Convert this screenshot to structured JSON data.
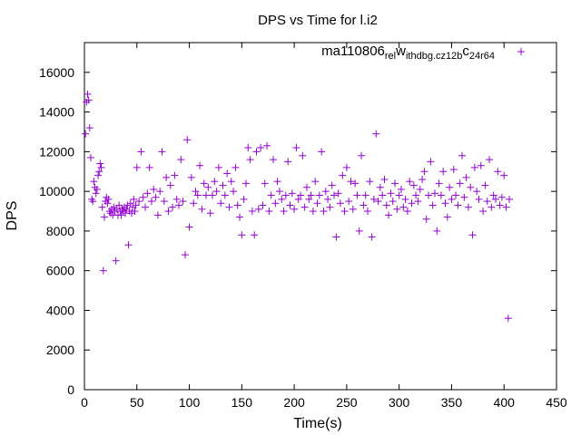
{
  "chart_data": {
    "type": "scatter",
    "title": "DPS vs Time for l.i2",
    "xlabel": "Time(s)",
    "ylabel": "DPS",
    "xlim": [
      0,
      450
    ],
    "ylim": [
      0,
      17500
    ],
    "xticks": [
      0,
      50,
      100,
      150,
      200,
      250,
      300,
      350,
      400,
      450
    ],
    "yticks": [
      0,
      2000,
      4000,
      6000,
      8000,
      10000,
      12000,
      14000,
      16000
    ],
    "grid": false,
    "legend_position": "top-right",
    "marker_color": "#9400D3",
    "series": [
      {
        "name": "ma110806_rel_withdbg.cz12b_c24r64",
        "legend_parts": [
          {
            "text": "ma110806",
            "sub": false
          },
          {
            "text": "rel",
            "sub": true
          },
          {
            "text": "w",
            "sub": false
          },
          {
            "text": "ithdbg.cz12b",
            "sub": true
          },
          {
            "text": "c",
            "sub": false
          },
          {
            "text": "24r64",
            "sub": true
          }
        ],
        "points": [
          [
            1,
            12900
          ],
          [
            2,
            14500
          ],
          [
            3,
            14900
          ],
          [
            4,
            14600
          ],
          [
            5,
            13200
          ],
          [
            6,
            11700
          ],
          [
            7,
            9600
          ],
          [
            8,
            9500
          ],
          [
            9,
            10500
          ],
          [
            10,
            10200
          ],
          [
            11,
            9900
          ],
          [
            12,
            10100
          ],
          [
            13,
            10800
          ],
          [
            14,
            11000
          ],
          [
            15,
            11400
          ],
          [
            16,
            11200
          ],
          [
            17,
            9200
          ],
          [
            18,
            6000
          ],
          [
            19,
            8700
          ],
          [
            20,
            9500
          ],
          [
            21,
            9700
          ],
          [
            22,
            9400
          ],
          [
            23,
            9600
          ],
          [
            24,
            9000
          ],
          [
            25,
            8900
          ],
          [
            26,
            9100
          ],
          [
            27,
            8800
          ],
          [
            28,
            9200
          ],
          [
            29,
            9000
          ],
          [
            30,
            6500
          ],
          [
            31,
            9100
          ],
          [
            32,
            8800
          ],
          [
            33,
            9300
          ],
          [
            34,
            9000
          ],
          [
            35,
            8800
          ],
          [
            36,
            9100
          ],
          [
            37,
            9000
          ],
          [
            38,
            9200
          ],
          [
            39,
            8900
          ],
          [
            40,
            9100
          ],
          [
            41,
            9300
          ],
          [
            42,
            7300
          ],
          [
            43,
            9000
          ],
          [
            44,
            9400
          ],
          [
            45,
            8900
          ],
          [
            46,
            9200
          ],
          [
            47,
            9600
          ],
          [
            48,
            9000
          ],
          [
            49,
            9300
          ],
          [
            50,
            11200
          ],
          [
            52,
            9500
          ],
          [
            54,
            12000
          ],
          [
            56,
            9700
          ],
          [
            58,
            9200
          ],
          [
            60,
            9900
          ],
          [
            62,
            11200
          ],
          [
            64,
            9500
          ],
          [
            66,
            10100
          ],
          [
            68,
            9700
          ],
          [
            70,
            8800
          ],
          [
            72,
            10000
          ],
          [
            74,
            12000
          ],
          [
            76,
            9500
          ],
          [
            78,
            10700
          ],
          [
            80,
            9000
          ],
          [
            82,
            10300
          ],
          [
            84,
            9200
          ],
          [
            86,
            10800
          ],
          [
            88,
            9600
          ],
          [
            90,
            9300
          ],
          [
            92,
            11600
          ],
          [
            94,
            9500
          ],
          [
            96,
            6800
          ],
          [
            98,
            12600
          ],
          [
            100,
            8200
          ],
          [
            102,
            10700
          ],
          [
            104,
            9400
          ],
          [
            106,
            10000
          ],
          [
            108,
            9800
          ],
          [
            110,
            11300
          ],
          [
            112,
            9100
          ],
          [
            114,
            10400
          ],
          [
            116,
            9800
          ],
          [
            118,
            10200
          ],
          [
            120,
            8900
          ],
          [
            122,
            9800
          ],
          [
            124,
            10500
          ],
          [
            126,
            10000
          ],
          [
            128,
            11200
          ],
          [
            130,
            9400
          ],
          [
            132,
            10300
          ],
          [
            134,
            9800
          ],
          [
            136,
            10900
          ],
          [
            138,
            9200
          ],
          [
            140,
            10500
          ],
          [
            142,
            10000
          ],
          [
            144,
            11200
          ],
          [
            146,
            9300
          ],
          [
            148,
            8700
          ],
          [
            150,
            7800
          ],
          [
            152,
            9600
          ],
          [
            154,
            10400
          ],
          [
            156,
            12200
          ],
          [
            158,
            11600
          ],
          [
            160,
            9000
          ],
          [
            162,
            7800
          ],
          [
            164,
            12000
          ],
          [
            166,
            9100
          ],
          [
            168,
            12200
          ],
          [
            170,
            9300
          ],
          [
            172,
            10400
          ],
          [
            174,
            12300
          ],
          [
            176,
            9000
          ],
          [
            178,
            9800
          ],
          [
            180,
            11600
          ],
          [
            182,
            9400
          ],
          [
            184,
            10500
          ],
          [
            186,
            10000
          ],
          [
            188,
            9600
          ],
          [
            190,
            9000
          ],
          [
            192,
            9800
          ],
          [
            194,
            11500
          ],
          [
            196,
            9300
          ],
          [
            198,
            9900
          ],
          [
            200,
            9100
          ],
          [
            202,
            12200
          ],
          [
            204,
            9600
          ],
          [
            206,
            9800
          ],
          [
            208,
            11800
          ],
          [
            210,
            9200
          ],
          [
            212,
            10200
          ],
          [
            214,
            9600
          ],
          [
            216,
            9800
          ],
          [
            218,
            9000
          ],
          [
            220,
            10500
          ],
          [
            222,
            9400
          ],
          [
            224,
            9800
          ],
          [
            226,
            12000
          ],
          [
            228,
            9000
          ],
          [
            230,
            10000
          ],
          [
            232,
            9600
          ],
          [
            234,
            9200
          ],
          [
            236,
            10300
          ],
          [
            238,
            9800
          ],
          [
            240,
            7700
          ],
          [
            242,
            9900
          ],
          [
            244,
            9400
          ],
          [
            246,
            10800
          ],
          [
            248,
            9000
          ],
          [
            250,
            11200
          ],
          [
            252,
            9500
          ],
          [
            254,
            10500
          ],
          [
            256,
            9100
          ],
          [
            258,
            10400
          ],
          [
            260,
            9800
          ],
          [
            262,
            8000
          ],
          [
            264,
            11800
          ],
          [
            266,
            9300
          ],
          [
            268,
            9800
          ],
          [
            270,
            9000
          ],
          [
            272,
            10500
          ],
          [
            274,
            7700
          ],
          [
            276,
            9600
          ],
          [
            278,
            12900
          ],
          [
            280,
            9500
          ],
          [
            282,
            10200
          ],
          [
            284,
            9800
          ],
          [
            286,
            10600
          ],
          [
            288,
            9300
          ],
          [
            290,
            8800
          ],
          [
            292,
            9900
          ],
          [
            294,
            9500
          ],
          [
            296,
            10400
          ],
          [
            298,
            9100
          ],
          [
            300,
            9800
          ],
          [
            302,
            10100
          ],
          [
            304,
            9200
          ],
          [
            306,
            9600
          ],
          [
            308,
            9000
          ],
          [
            310,
            10500
          ],
          [
            312,
            9400
          ],
          [
            314,
            10300
          ],
          [
            316,
            9800
          ],
          [
            318,
            9500
          ],
          [
            320,
            10100
          ],
          [
            322,
            10600
          ],
          [
            324,
            11000
          ],
          [
            326,
            8600
          ],
          [
            328,
            9800
          ],
          [
            330,
            11500
          ],
          [
            332,
            9300
          ],
          [
            334,
            9900
          ],
          [
            336,
            8000
          ],
          [
            338,
            10400
          ],
          [
            340,
            9800
          ],
          [
            342,
            11000
          ],
          [
            344,
            9400
          ],
          [
            346,
            8700
          ],
          [
            348,
            10200
          ],
          [
            350,
            9600
          ],
          [
            352,
            11100
          ],
          [
            354,
            9800
          ],
          [
            356,
            9300
          ],
          [
            358,
            10400
          ],
          [
            360,
            11800
          ],
          [
            362,
            9700
          ],
          [
            364,
            10700
          ],
          [
            366,
            9200
          ],
          [
            368,
            10200
          ],
          [
            370,
            7800
          ],
          [
            372,
            11200
          ],
          [
            374,
            10000
          ],
          [
            376,
            9600
          ],
          [
            378,
            11300
          ],
          [
            380,
            9000
          ],
          [
            382,
            10300
          ],
          [
            384,
            9500
          ],
          [
            386,
            11600
          ],
          [
            388,
            9200
          ],
          [
            390,
            9800
          ],
          [
            392,
            9600
          ],
          [
            394,
            11000
          ],
          [
            396,
            9300
          ],
          [
            398,
            9700
          ],
          [
            400,
            10800
          ],
          [
            402,
            9200
          ],
          [
            404,
            3600
          ],
          [
            405,
            9600
          ]
        ]
      }
    ]
  }
}
